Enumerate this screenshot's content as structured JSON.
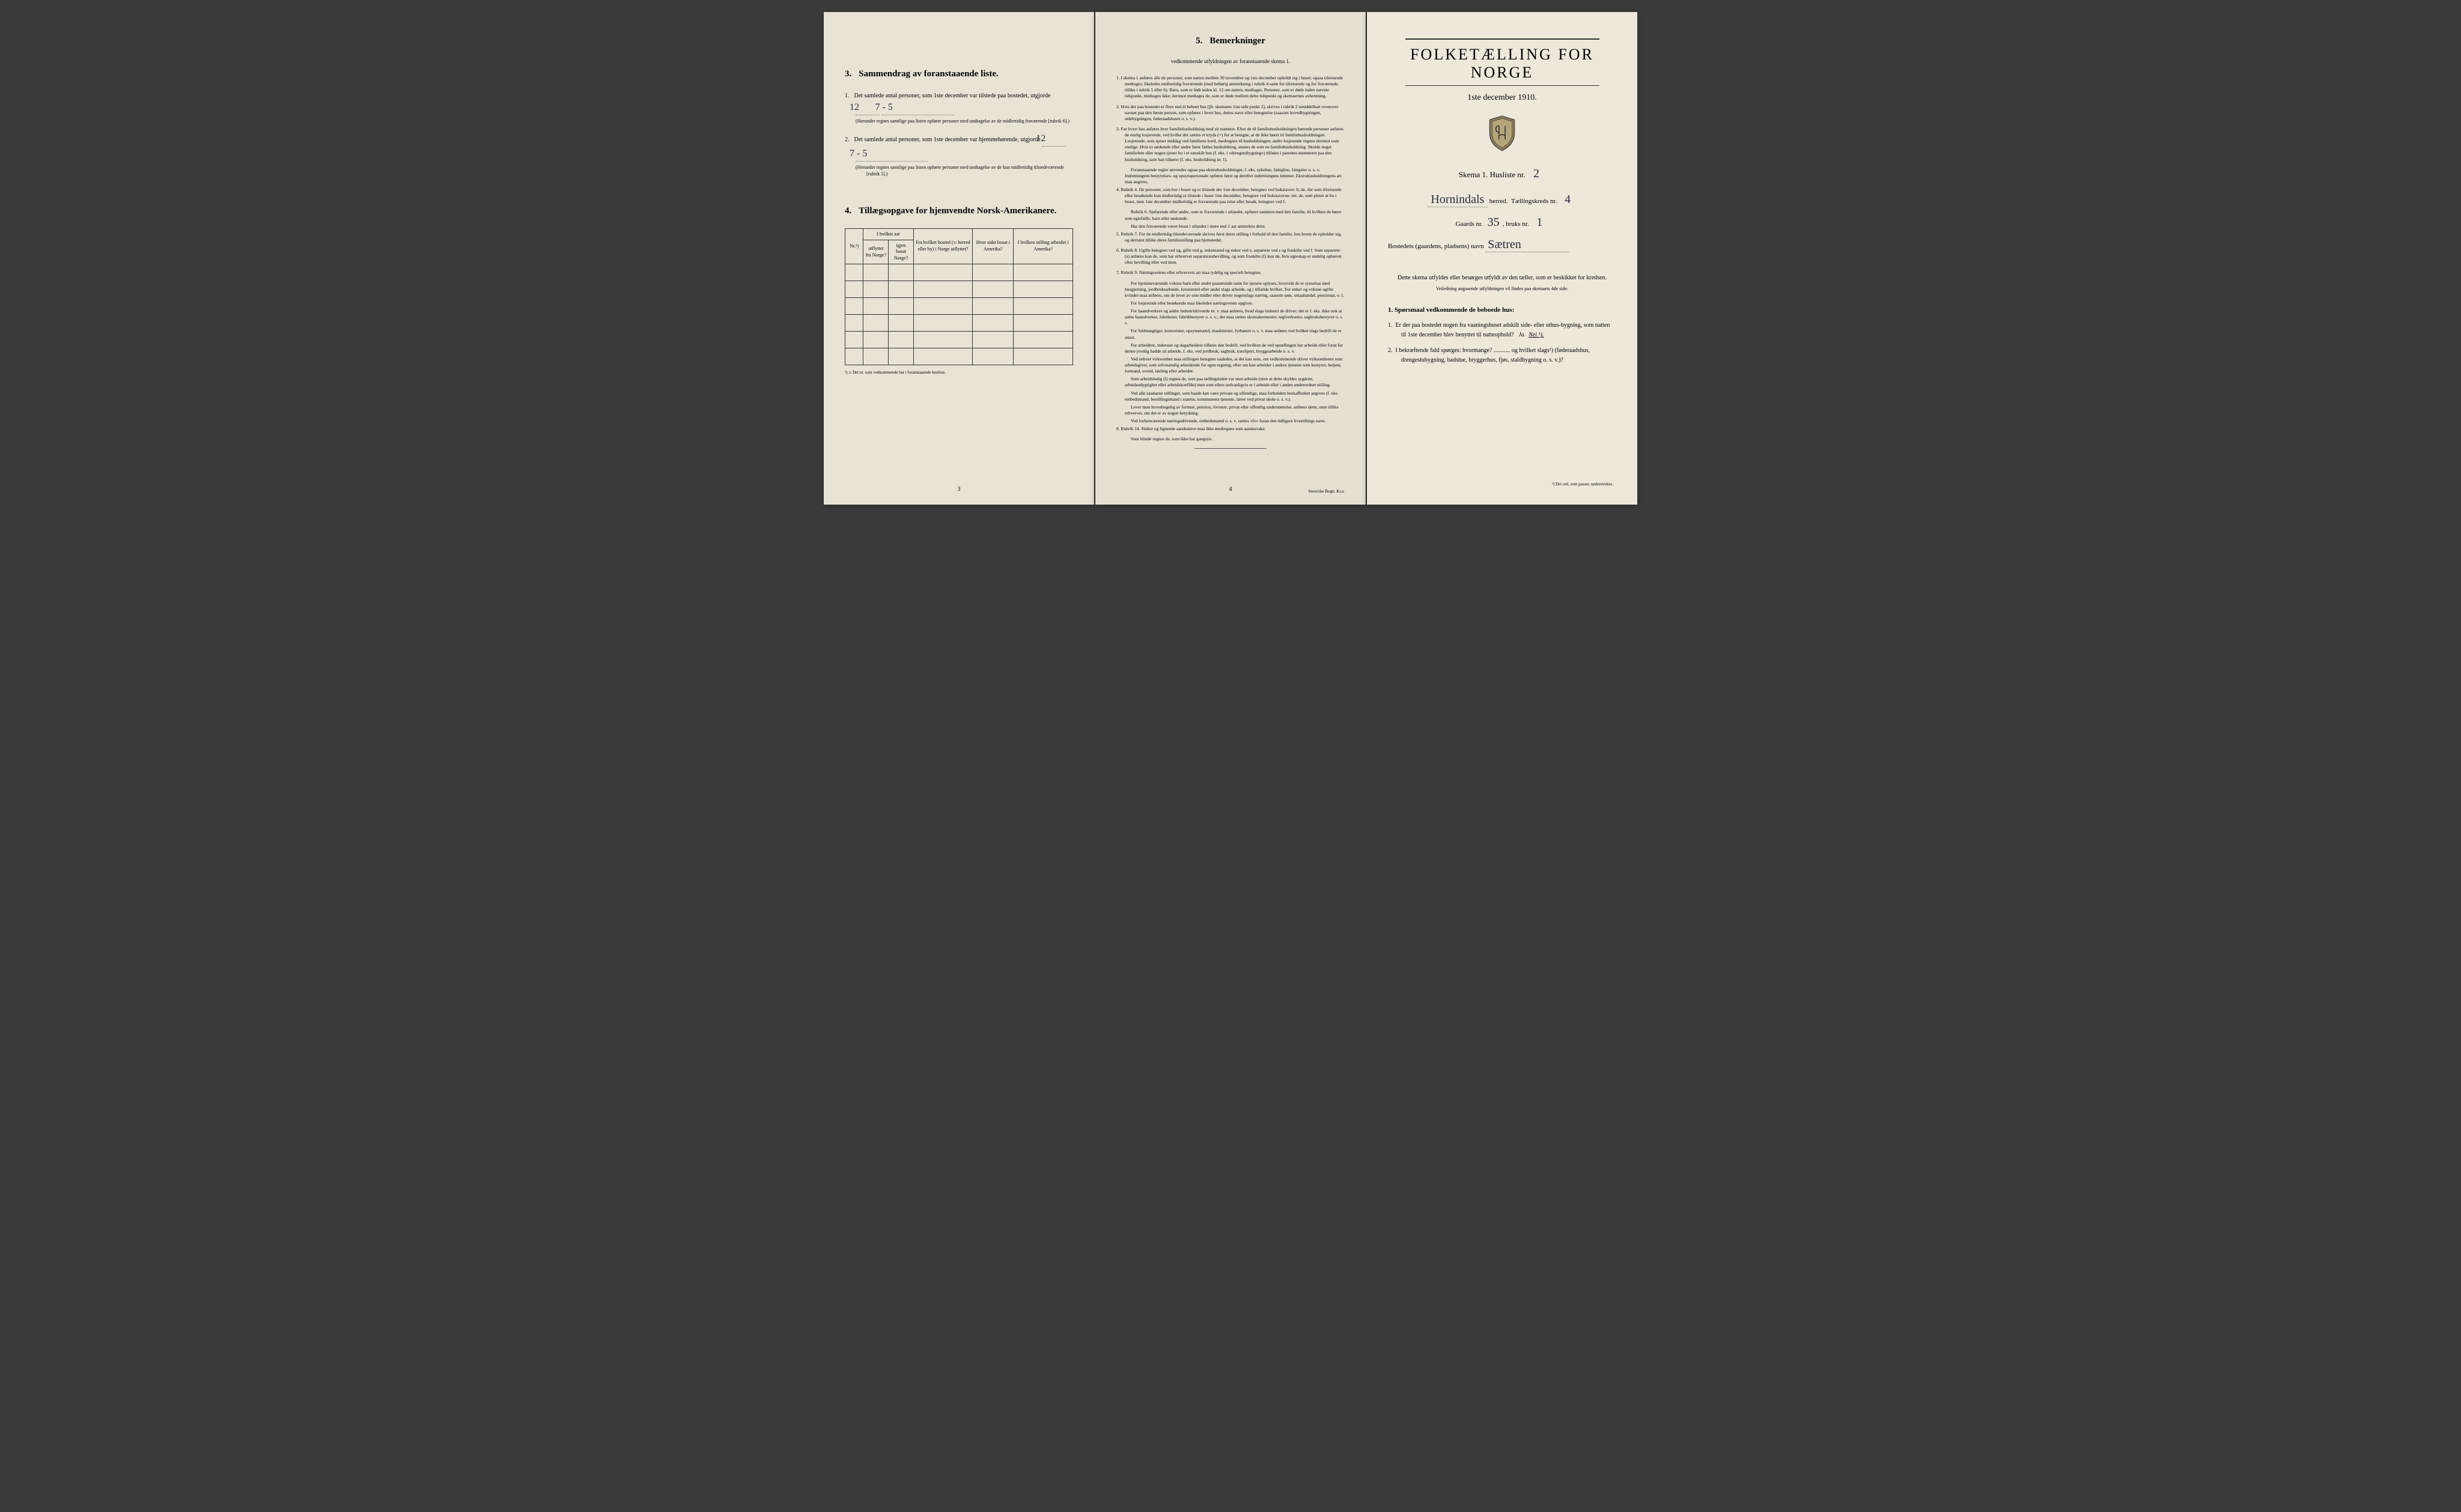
{
  "left": {
    "section3": {
      "num": "3.",
      "title": "Sammendrag av foranstaaende liste.",
      "item1_num": "1.",
      "item1_text": "Det samlede antal personer, som 1ste december var tilstede paa bostedet, utgjorde",
      "item1_val1": "12",
      "item1_val2": "7 - 5",
      "item1_fine": "(Herunder regnes samtlige paa listen opførte personer med undtagelse av de midlertidig fraværende [rubrik 6].)",
      "item2_num": "2.",
      "item2_text": "Det samlede antal personer, som 1ste december var hjemmehørende, utgjorde",
      "item2_val1": "12",
      "item2_val2": "7 - 5",
      "item2_fine": "(Herunder regnes samtlige paa listen opførte personer med undtagelse av de kun midlertidig tilstedeværende [rubrik 5].)"
    },
    "section4": {
      "num": "4.",
      "title": "Tillægsopgave for hjemvendte Norsk-Amerikanere.",
      "headers": {
        "c0": "Nr.¹)",
        "c1": "I hvilket aar utflyttet fra Norge?",
        "c2": "Fra hvilket bosted (ↄ: herred eller by) i Norge utflyttet?",
        "c3": "Hvor sidst bosat i Amerika?",
        "c4": "I hvilken stilling arbeidet i Amerika?",
        "c1b": "igjen bosat Norge?"
      },
      "footnote": "¹) ↄ: Det nr. som vedkommende har i foranstaaende husliste."
    },
    "page_num": "3"
  },
  "middle": {
    "section5_num": "5.",
    "section5_title": "Bemerkninger",
    "subtitle": "vedkommende utfyldningen av foranstaaende skema 1.",
    "remarks": [
      {
        "n": "1.",
        "t": "I skema 1 anføres alle de personer, som natten mellem 30 november og 1ste december opholdt sig i huset; ogsaa tilreisende medtages; likeledes midlertidig fraværende (med behørig anmerkning i rubrik 4 samt for tilreisende og for fraværende tillike i rubrik 5 eller 6). Barn, som er født inden kl. 12 om natten, medtages. Personer, som er døde inden nævnte tidspunkt, medtages ikke; derimot medtages de, som er døde mellem dette tidspunkt og skemaernes avhentning."
      },
      {
        "n": "2.",
        "t": "Hvis der paa bostedet er flere end ét beboet hus (jfr. skemaets 1ste side punkt 2), skrives i rubrik 2 umiddelbart ovenover navnet paa den første person, som opføres i hvert hus, dettes navn eller betegnelse (saasom hovedbygningen, sidebygningen, føderaadshuset o. s. v.)."
      },
      {
        "n": "3.",
        "t": "For hvert hus anføres hver familiehusholdning med sit nummer. Efter de til familiehusholdningen hørende personer anføres de enslig losjerende, ved hvilke der sættes et kryds (×) for at betegne, at de ikke hører til familiehusholdningen. Losjerende, som spiser middag ved familiens bord, medregnes til husholdningen; andre losjerende regnes derimot som enslige. Hvis to søskende eller andre fører fælles husholdning, ansees de som en familiehusholdning. Skulde noget familielem eller nogen tjener bo i et særskilt hus (f. eks. i «drengstubygning») tilføies i parentes nummeret paa den husholdning, som han tilhører (f. eks. husholdning nr. 1)."
      },
      {
        "n": "",
        "t": "Foranstaaende regler anvendes ogsaa paa ekstrahusholdninger, f. eks. sykehus, fattighus, fængsler o. s. v.  Indretningens bestyrelses- og opsynspersonale opføres først og derefter indretningens lemmer.  Ekstrahusholdningens art maa angives."
      },
      {
        "n": "4.",
        "t": "Rubrik 4. De personer, som bor i huset og er tilstede der 1ste december, betegnes ved bokstaven: b; de, der som tilreisende eller besøkende kun midlertidig er tilstede i huset 1ste december, betegnes ved bokstaverne: mt; de, som pleier at bo i huset, men 1ste december midlertidig er fraværende paa reise eller besøk, betegnes ved f."
      },
      {
        "n": "",
        "t": "Rubrik 6. Sjøfarende eller andre, som er fraværende i utlandet, opføres sammen med den familie, til hvilken de hører som egtefælle, barn eller søskende."
      },
      {
        "n": "",
        "t": "Har den fraværende været bosat i utlandet i mere end 1 aar anmerkes dette."
      },
      {
        "n": "5.",
        "t": "Rubrik 7. For de midlertidig tilstedeværende skrives først deres stilling i forhold til den familie, hos hvem de opholder sig, og dernæst tillike deres familiestilling paa hjemstedet."
      },
      {
        "n": "6.",
        "t": "Rubrik 8. Ugifte betegnes ved ug, gifte ved g, enkemænd og enker ved e, separerte ved s og fraskilte ved f. Som separerte (s) anføres kun de, som har erhvervet separationsbevilling, og som fraskilte (f) kun de, hvis egteskap er endelig ophævet efter bevilling eller ved dom."
      },
      {
        "n": "7.",
        "t": "Rubrik 9. Næringsveiens eller erhvervets art maa tydelig og specielt betegnes."
      },
      {
        "n": "",
        "t": "For hjemmeværende voksne barn eller andre paarørende samt for tjenere oplyses, hvorvidt de er sysselsat med husgjerning, jordbruksarbeide, kreaturstel eller andet slags arbeide, og i tilfælde hvilket. For enker og voksne ugifte kvinder maa anføres, om de lever av sine midler eller driver nogenslags næring, saasom søm, smaahandel, pensionat, o. l."
      },
      {
        "n": "",
        "t": "For losjerende eller besøkende maa likeledes næringsveien opgives."
      },
      {
        "n": "",
        "t": "For haandverkere og andre industridrivende m. v. maa anføres, hvad slags industri de driver; det er f. eks. ikke nok at sætte haandverker, fabrikeier, fabrikbestyrer o. s. v.; der maa sættes skomakermester, teglverkseier, sagbruksbestyrer o. s. v."
      },
      {
        "n": "",
        "t": "For fuldmægtiger, kontorister, opsynsmænd, maskinister, fyrbøtere o. s. v. maa anføres ved hvilket slags bedrift de er ansat."
      },
      {
        "n": "",
        "t": "For arbeidere, inderster og dagarbeidere tilføies den bedrift, ved hvilken de ved optællingen har arbeide eller forut for denne jevnlig hadde sit arbeide, f. eks. ved jordbruk, sagbruk, træsliperi, bryggearbeide o. s. v."
      },
      {
        "n": "",
        "t": "Ved enhver virksomhet maa stillingen betegnes saaledes, at det kan sees, om vedkommende driver virksomheten som arbeidsgiver, som selvstændig arbeidende for egen regning, eller om han arbeider i andres tjeneste som bestyrer, betjent, formand, svend, lærling eller arbeider."
      },
      {
        "n": "",
        "t": "Som arbeidsledig (l) regnes de, som paa tællingstiden var uten arbeide (uten at dette skyldes sygdom, arbeidsudygtighet eller arbeidskonflikt) men som ellers sedvanligvis er i arbeide eller i anden underordnet stilling."
      },
      {
        "n": "",
        "t": "Ved alle saadanne stillinger, som baade kan være private og offentlige, maa forholdets beskaffenhet angives (f. eks. embedsmand, bestillingsmand i statens, kommunens tjeneste, lærer ved privat skole o. s. v.)."
      },
      {
        "n": "",
        "t": "Lever man hovedsagelig av formue, pension, livrente, privat eller offentlig understøttelse, anføres dette, men tillike erhvervet, om det er av nogen betydning."
      },
      {
        "n": "",
        "t": "Ved forhenværende næringsdrivende, embedsmænd o. s. v. sættes «fv» foran den tidligere livsstillings navn."
      },
      {
        "n": "8.",
        "t": "Rubrik 14. Sinker og lignende aandssløve maa ikke medregnes som aandssvake."
      },
      {
        "n": "",
        "t": "Som blinde regnes de, som ikke har gangsyn."
      }
    ],
    "page_num": "4",
    "printer": "Steen'ske Bogtr.  Kr.a."
  },
  "right": {
    "main_title": "FOLKETÆLLING FOR NORGE",
    "date": "1ste december 1910.",
    "skema_label": "Skema 1.   Husliste nr.",
    "husliste_nr": "2",
    "herred_val": "Hornindals",
    "herred_label": "herred.",
    "kreds_label": "Tællingskreds nr.",
    "kreds_val": "4",
    "gaards_label": "Gaards nr.",
    "gaards_val": "35",
    "bruks_label": "bruks nr.",
    "bruks_val": "1",
    "bosted_label": "Bostedets (gaardens, pladsens) navn",
    "bosted_val": "Sætren",
    "instructions": "Dette skema utfyldes eller besørges utfyldt av den tæller, som er beskikket for kredsen.",
    "instructions_sub": "Veiledning angaaende utfyldningen vil findes paa skemaets 4de side.",
    "q_header": "1. Spørsmaal vedkommende de beboede hus:",
    "q1_num": "1.",
    "q1_text": "Er der paa bostedet nogen fra vaaningshuset adskilt side- eller uthus-bygning, som natten til 1ste december blev benyttet til natteophold?",
    "q1_ja": "Ja.",
    "q1_nei": "Nei ¹).",
    "q2_num": "2.",
    "q2_text": "I bekræftende fald spørges: hvormange? ........... og hvilket slags¹) (føderaadshus, drengestubygning, badstue, bryggerhus, fjøs, staldbygning o. s. v.)?",
    "bottom_note": "¹) Det ord, som passer, understrekes."
  }
}
